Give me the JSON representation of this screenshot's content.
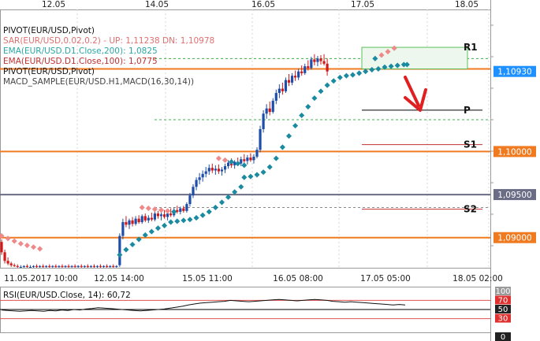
{
  "chart_data": {
    "type": "candlestick",
    "top_dates": [
      "12.05",
      "14.05",
      "16.05",
      "17.05",
      "18.05"
    ],
    "bottom_dates": [
      "11.05.2017 10:00",
      "12.05 14:00",
      "15.05 11:00",
      "16.05 08:00",
      "17.05 05:00",
      "18.05 02:00"
    ],
    "legend": [
      {
        "text": "PIVOT(EUR/USD,Pivot)",
        "color": "#111111"
      },
      {
        "text": "SAR(EUR/USD,0.02,0.2) -   UP: 1,11238   DN: 1,10978",
        "color": "#e07070"
      },
      {
        "text": "EMA(EUR/USD.D1.Close,200): 1,0825",
        "color": "#2aa7a7"
      },
      {
        "text": "EMA(EUR/USD.D1.Close,100): 1,0775",
        "color": "#c03030"
      },
      {
        "text": "PIVOT(EUR/USD,Pivot)",
        "color": "#111111"
      },
      {
        "text": "MACD_SAMPLE(EUR/USD.H1,MACD(16,30,14))",
        "color": "#444444"
      }
    ],
    "ylim": [
      1.0865,
      1.1165
    ],
    "price_labels": [
      {
        "text": "1,10930",
        "value": 1.1093,
        "bg": "#1e90ff"
      },
      {
        "text": "1,10000",
        "value": 1.1,
        "bg": "#f07a20"
      },
      {
        "text": "1,09500",
        "value": 1.095,
        "bg": "#6a6d85"
      },
      {
        "text": "1,09000",
        "value": 1.09,
        "bg": "#f07a20"
      }
    ],
    "pivot_levels": [
      {
        "name": "R1",
        "value": 1.1121
      },
      {
        "name": "P",
        "value": 1.1048
      },
      {
        "name": "S1",
        "value": 1.1008
      },
      {
        "name": "S2",
        "value": 1.0933
      }
    ],
    "support_resistance": [
      1.1096,
      1.1,
      1.095,
      1.09
    ],
    "candles": [
      [
        1.0895,
        1.0898,
        1.088,
        1.0883
      ],
      [
        1.0883,
        1.0886,
        1.087,
        1.0873
      ],
      [
        1.0873,
        1.0877,
        1.0868,
        1.087
      ],
      [
        1.087,
        1.0872,
        1.0866,
        1.0868
      ],
      [
        1.0868,
        1.087,
        1.0866,
        1.0867
      ],
      [
        1.0867,
        1.0869,
        1.0865,
        1.0866
      ],
      [
        1.0866,
        1.0868,
        1.0865,
        1.0866
      ],
      [
        1.0866,
        1.0868,
        1.0865,
        1.0867
      ],
      [
        1.0867,
        1.0869,
        1.0865,
        1.0866
      ],
      [
        1.0866,
        1.0868,
        1.0865,
        1.0866
      ],
      [
        1.0866,
        1.0868,
        1.0865,
        1.0867
      ],
      [
        1.0867,
        1.0869,
        1.0865,
        1.0866
      ],
      [
        1.0866,
        1.0868,
        1.0865,
        1.0867
      ],
      [
        1.0867,
        1.0869,
        1.0865,
        1.0866
      ],
      [
        1.0866,
        1.0868,
        1.0865,
        1.0867
      ],
      [
        1.0867,
        1.0869,
        1.0865,
        1.0866
      ],
      [
        1.0866,
        1.0868,
        1.0865,
        1.0867
      ],
      [
        1.0867,
        1.0869,
        1.0865,
        1.0866
      ],
      [
        1.0866,
        1.0868,
        1.0865,
        1.0867
      ],
      [
        1.0867,
        1.0869,
        1.0865,
        1.0866
      ],
      [
        1.0866,
        1.0868,
        1.0865,
        1.0867
      ],
      [
        1.0867,
        1.0869,
        1.0865,
        1.0866
      ],
      [
        1.0866,
        1.0868,
        1.0865,
        1.0867
      ],
      [
        1.0867,
        1.0869,
        1.0865,
        1.0866
      ],
      [
        1.0866,
        1.0868,
        1.0865,
        1.0867
      ],
      [
        1.0867,
        1.0869,
        1.0865,
        1.0866
      ],
      [
        1.0866,
        1.0868,
        1.0865,
        1.0867
      ],
      [
        1.0867,
        1.0869,
        1.0865,
        1.0866
      ],
      [
        1.0866,
        1.0868,
        1.0865,
        1.0867
      ],
      [
        1.0867,
        1.0869,
        1.0865,
        1.0866
      ],
      [
        1.0866,
        1.0868,
        1.0865,
        1.0867
      ],
      [
        1.0867,
        1.0869,
        1.0865,
        1.0866
      ],
      [
        1.0866,
        1.0868,
        1.0865,
        1.0867
      ],
      [
        1.0867,
        1.0869,
        1.0865,
        1.0866
      ],
      [
        1.0866,
        1.0868,
        1.0865,
        1.0867
      ],
      [
        1.0867,
        1.0869,
        1.0865,
        1.0866
      ],
      [
        1.0866,
        1.0868,
        1.0865,
        1.0867
      ],
      [
        1.0868,
        1.0905,
        1.0866,
        1.0902
      ],
      [
        1.0902,
        1.0922,
        1.0898,
        1.0918
      ],
      [
        1.0918,
        1.0925,
        1.0912,
        1.0915
      ],
      [
        1.0915,
        1.0922,
        1.091,
        1.092
      ],
      [
        1.092,
        1.0924,
        1.0913,
        1.0916
      ],
      [
        1.0916,
        1.0925,
        1.0914,
        1.0922
      ],
      [
        1.0922,
        1.0926,
        1.0916,
        1.0918
      ],
      [
        1.0918,
        1.0927,
        1.0916,
        1.0925
      ],
      [
        1.0925,
        1.0928,
        1.0918,
        1.092
      ],
      [
        1.092,
        1.0926,
        1.0917,
        1.0923
      ],
      [
        1.0923,
        1.0929,
        1.0919,
        1.0921
      ],
      [
        1.0921,
        1.0932,
        1.0919,
        1.0928
      ],
      [
        1.0928,
        1.0931,
        1.0922,
        1.0925
      ],
      [
        1.0925,
        1.093,
        1.092,
        1.0927
      ],
      [
        1.0927,
        1.0932,
        1.0922,
        1.0924
      ],
      [
        1.0924,
        1.093,
        1.092,
        1.0928
      ],
      [
        1.0928,
        1.0934,
        1.0924,
        1.0926
      ],
      [
        1.0926,
        1.0935,
        1.0924,
        1.0932
      ],
      [
        1.0932,
        1.0937,
        1.0928,
        1.093
      ],
      [
        1.093,
        1.0936,
        1.0927,
        1.0934
      ],
      [
        1.0934,
        1.0937,
        1.0929,
        1.0931
      ],
      [
        1.0931,
        1.0941,
        1.0929,
        1.0939
      ],
      [
        1.0939,
        1.0952,
        1.0936,
        1.0949
      ],
      [
        1.0949,
        1.0962,
        1.0946,
        1.0959
      ],
      [
        1.0959,
        1.097,
        1.0955,
        1.0967
      ],
      [
        1.0967,
        1.0975,
        1.0962,
        1.097
      ],
      [
        1.097,
        1.0978,
        1.0965,
        1.0974
      ],
      [
        1.0974,
        1.0982,
        1.097,
        1.0977
      ],
      [
        1.0977,
        1.0985,
        1.0973,
        1.0981
      ],
      [
        1.0981,
        1.0986,
        1.0975,
        1.0978
      ],
      [
        1.0978,
        1.0984,
        1.0973,
        1.098
      ],
      [
        1.098,
        1.0985,
        1.0974,
        1.0977
      ],
      [
        1.0977,
        1.0982,
        1.0972,
        1.0979
      ],
      [
        1.0979,
        1.0986,
        1.0975,
        1.0983
      ],
      [
        1.0983,
        1.099,
        1.098,
        1.0987
      ],
      [
        1.0987,
        1.0992,
        1.0981,
        1.0984
      ],
      [
        1.0984,
        1.099,
        1.098,
        1.0988
      ],
      [
        1.0988,
        1.0993,
        1.0984,
        1.0986
      ],
      [
        1.0986,
        1.0994,
        1.0983,
        1.0991
      ],
      [
        1.0991,
        1.0997,
        1.0987,
        1.0989
      ],
      [
        1.0989,
        1.0996,
        1.0985,
        1.0993
      ],
      [
        1.0993,
        1.0998,
        1.0988,
        1.099
      ],
      [
        1.099,
        1.0997,
        1.0986,
        1.0994
      ],
      [
        1.0994,
        1.1005,
        1.0992,
        1.1002
      ],
      [
        1.1002,
        1.103,
        1.0999,
        1.1026
      ],
      [
        1.1026,
        1.1048,
        1.1022,
        1.1044
      ],
      [
        1.1044,
        1.1055,
        1.1038,
        1.105
      ],
      [
        1.105,
        1.1058,
        1.1042,
        1.1046
      ],
      [
        1.1046,
        1.1062,
        1.1044,
        1.1059
      ],
      [
        1.1059,
        1.1072,
        1.1055,
        1.1068
      ],
      [
        1.1068,
        1.1078,
        1.1062,
        1.1073
      ],
      [
        1.1073,
        1.108,
        1.1066,
        1.107
      ],
      [
        1.107,
        1.1086,
        1.1068,
        1.1083
      ],
      [
        1.1083,
        1.109,
        1.1076,
        1.108
      ],
      [
        1.108,
        1.1091,
        1.1077,
        1.1088
      ],
      [
        1.1088,
        1.1094,
        1.1082,
        1.1086
      ],
      [
        1.1086,
        1.1096,
        1.1083,
        1.1093
      ],
      [
        1.1093,
        1.11,
        1.1088,
        1.1091
      ],
      [
        1.1091,
        1.1102,
        1.1089,
        1.1099
      ],
      [
        1.1099,
        1.1106,
        1.1094,
        1.1097
      ],
      [
        1.1097,
        1.111,
        1.1095,
        1.1107
      ],
      [
        1.1107,
        1.1113,
        1.11,
        1.1104
      ],
      [
        1.1104,
        1.1111,
        1.1099,
        1.1108
      ],
      [
        1.1108,
        1.1112,
        1.1101,
        1.1105
      ],
      [
        1.1105,
        1.1113,
        1.11,
        1.1102
      ],
      [
        1.1102,
        1.1108,
        1.1088,
        1.1093
      ]
    ],
    "sar_dots": [
      [
        0,
        1.0902
      ],
      [
        2,
        1.0899
      ],
      [
        4,
        1.0896
      ],
      [
        6,
        1.0893
      ],
      [
        8,
        1.0891
      ],
      [
        10,
        1.0889
      ],
      [
        12,
        1.0887
      ],
      [
        37,
        1.088
      ],
      [
        39,
        1.0886
      ],
      [
        41,
        1.0892
      ],
      [
        43,
        1.0898
      ],
      [
        45,
        1.0903
      ],
      [
        47,
        1.0907
      ],
      [
        49,
        1.0911
      ],
      [
        51,
        1.0914
      ],
      [
        44,
        1.0935
      ],
      [
        46,
        1.0934
      ],
      [
        48,
        1.0933
      ],
      [
        50,
        1.0932
      ],
      [
        52,
        1.0931
      ],
      [
        54,
        1.093
      ],
      [
        53,
        1.0918
      ],
      [
        55,
        1.0919
      ],
      [
        57,
        1.092
      ],
      [
        59,
        1.0921
      ],
      [
        61,
        1.0923
      ],
      [
        63,
        1.0926
      ],
      [
        65,
        1.093
      ],
      [
        67,
        1.0935
      ],
      [
        69,
        1.0941
      ],
      [
        71,
        1.0947
      ],
      [
        73,
        1.0953
      ],
      [
        75,
        1.0959
      ],
      [
        68,
        1.0992
      ],
      [
        70,
        1.099
      ],
      [
        72,
        1.0988
      ],
      [
        74,
        1.0986
      ],
      [
        76,
        1.0984
      ],
      [
        76,
        1.097
      ],
      [
        78,
        1.0971
      ],
      [
        80,
        1.0973
      ],
      [
        82,
        1.0976
      ],
      [
        84,
        1.0982
      ],
      [
        86,
        1.0992
      ],
      [
        88,
        1.1005
      ],
      [
        90,
        1.1018
      ],
      [
        92,
        1.103
      ],
      [
        94,
        1.1042
      ],
      [
        96,
        1.1052
      ],
      [
        98,
        1.1062
      ],
      [
        100,
        1.107
      ],
      [
        102,
        1.1077
      ],
      [
        104,
        1.1082
      ],
      [
        106,
        1.1086
      ],
      [
        108,
        1.1088
      ],
      [
        110,
        1.1089
      ],
      [
        112,
        1.1091
      ],
      [
        114,
        1.1093
      ],
      [
        116,
        1.1095
      ],
      [
        118,
        1.1096
      ],
      [
        120,
        1.1098
      ],
      [
        122,
        1.1099
      ],
      [
        124,
        1.11
      ],
      [
        126,
        1.1101
      ],
      [
        127,
        1.1101
      ],
      [
        117,
        1.1108
      ],
      [
        119,
        1.1112
      ],
      [
        121,
        1.1116
      ],
      [
        123,
        1.112
      ]
    ],
    "rsi": {
      "label": "RSI(EUR/USD.Close, 14): 60,72",
      "levels": [
        "100",
        "70",
        "50",
        "30",
        "0"
      ],
      "values": [
        49,
        48,
        47,
        46,
        47,
        48,
        47,
        46,
        48,
        47,
        49,
        48,
        50,
        49,
        51,
        52,
        54,
        53,
        52,
        51,
        50,
        49,
        48,
        47,
        48,
        49,
        50,
        51,
        53,
        55,
        57,
        60,
        62,
        64,
        65,
        66,
        67,
        68,
        70,
        69,
        68,
        67,
        68,
        69,
        70,
        71,
        72,
        71,
        70,
        69,
        70,
        71,
        72,
        71,
        70,
        68,
        67,
        66,
        67,
        66,
        65,
        64,
        63,
        62,
        61,
        60,
        61,
        60
      ]
    }
  }
}
